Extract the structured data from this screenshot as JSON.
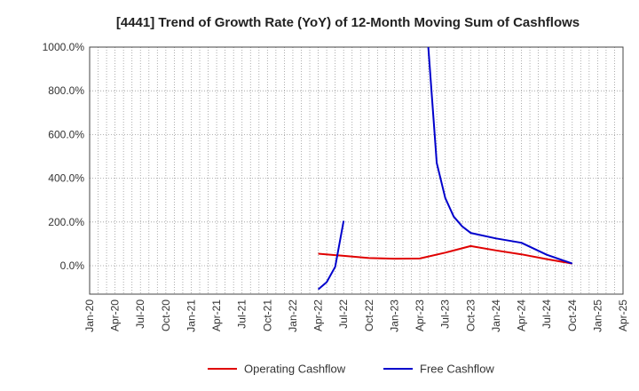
{
  "chart_data": {
    "type": "line",
    "title": "[4441]  Trend of Growth Rate (YoY) of 12-Month Moving Sum of Cashflows",
    "xlabel": "",
    "ylabel": "",
    "ylim": [
      -130,
      1000
    ],
    "y_ticks": [
      0,
      200,
      400,
      600,
      800,
      1000
    ],
    "y_tick_labels": [
      "0.0%",
      "200.0%",
      "400.0%",
      "600.0%",
      "800.0%",
      "1000.0%"
    ],
    "x_range": [
      "2020-01",
      "2025-04"
    ],
    "x_tick_labels": [
      "Jan-20",
      "Apr-20",
      "Jul-20",
      "Oct-20",
      "Jan-21",
      "Apr-21",
      "Jul-21",
      "Oct-21",
      "Jan-22",
      "Apr-22",
      "Jul-22",
      "Oct-22",
      "Jan-23",
      "Apr-23",
      "Jul-23",
      "Oct-23",
      "Jan-24",
      "Apr-24",
      "Jul-24",
      "Oct-24",
      "Jan-25",
      "Apr-25"
    ],
    "grid": true,
    "legend_position": "bottom",
    "series": [
      {
        "name": "Operating Cashflow",
        "color": "#e00000",
        "points": [
          {
            "x": "2022-04",
            "y": 55
          },
          {
            "x": "2022-07",
            "y": 45
          },
          {
            "x": "2022-10",
            "y": 35
          },
          {
            "x": "2023-01",
            "y": 32
          },
          {
            "x": "2023-04",
            "y": 33
          },
          {
            "x": "2023-07",
            "y": 60
          },
          {
            "x": "2023-10",
            "y": 90
          },
          {
            "x": "2024-01",
            "y": 70
          },
          {
            "x": "2024-04",
            "y": 52
          },
          {
            "x": "2024-07",
            "y": 30
          },
          {
            "x": "2024-10",
            "y": 10
          }
        ]
      },
      {
        "name": "Free Cashflow",
        "color": "#0000cc",
        "segments": [
          [
            {
              "x": "2022-04",
              "y": -108
            },
            {
              "x": "2022-05",
              "y": -75
            },
            {
              "x": "2022-06",
              "y": -5
            },
            {
              "x": "2022-07",
              "y": 205
            }
          ],
          [
            {
              "x": "2023-05",
              "y": 1000
            },
            {
              "x": "2023-06",
              "y": 470
            },
            {
              "x": "2023-07",
              "y": 310
            },
            {
              "x": "2023-08",
              "y": 225
            },
            {
              "x": "2023-09",
              "y": 180
            },
            {
              "x": "2023-10",
              "y": 150
            },
            {
              "x": "2024-01",
              "y": 125
            },
            {
              "x": "2024-04",
              "y": 105
            },
            {
              "x": "2024-07",
              "y": 50
            },
            {
              "x": "2024-10",
              "y": 10
            }
          ]
        ]
      }
    ]
  }
}
